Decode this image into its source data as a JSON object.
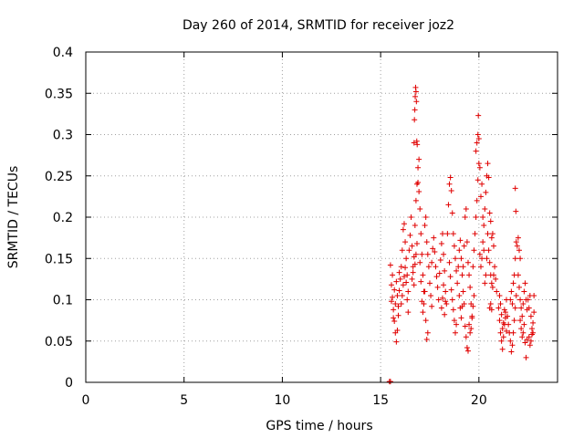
{
  "chart_data": {
    "type": "scatter",
    "title": "Day 260 of 2014, SRMTID for receiver joz2",
    "xlabel": "GPS time / hours",
    "ylabel": "SRMTID / TECUs",
    "xlim": [
      0,
      24
    ],
    "ylim": [
      0,
      0.4
    ],
    "x_ticks": [
      0,
      5,
      10,
      15,
      20
    ],
    "x_tick_labels": [
      "0",
      "5",
      "10",
      "15",
      "20"
    ],
    "y_ticks": [
      0,
      0.05,
      0.1,
      0.15,
      0.2,
      0.25,
      0.3,
      0.35,
      0.4
    ],
    "y_tick_labels": [
      "0",
      "0.05",
      "0.1",
      "0.15",
      "0.2",
      "0.25",
      "0.3",
      "0.35",
      "0.4"
    ],
    "grid": true,
    "legend": "none",
    "marker": "plus",
    "series": [
      {
        "color": "#e00000",
        "points": [
          [
            15.45,
            0.001
          ],
          [
            15.5,
            0.001
          ],
          [
            15.5,
            0.142
          ],
          [
            15.55,
            0.118
          ],
          [
            15.6,
            0.103
          ],
          [
            15.65,
            0.088
          ],
          [
            15.7,
            0.074
          ],
          [
            15.75,
            0.06
          ],
          [
            15.8,
            0.049
          ],
          [
            15.85,
            0.063
          ],
          [
            15.9,
            0.092
          ],
          [
            15.95,
            0.111
          ],
          [
            15.55,
            0.098
          ],
          [
            15.6,
            0.13
          ],
          [
            15.65,
            0.078
          ],
          [
            15.7,
            0.112
          ],
          [
            15.75,
            0.095
          ],
          [
            15.8,
            0.122
          ],
          [
            15.85,
            0.105
          ],
          [
            15.9,
            0.081
          ],
          [
            15.95,
            0.133
          ],
          [
            16.0,
            0.125
          ],
          [
            16.05,
            0.14
          ],
          [
            16.1,
            0.16
          ],
          [
            16.15,
            0.185
          ],
          [
            16.2,
            0.192
          ],
          [
            16.25,
            0.17
          ],
          [
            16.3,
            0.15
          ],
          [
            16.35,
            0.13
          ],
          [
            16.4,
            0.11
          ],
          [
            16.05,
            0.095
          ],
          [
            16.1,
            0.105
          ],
          [
            16.15,
            0.118
          ],
          [
            16.2,
            0.128
          ],
          [
            16.25,
            0.139
          ],
          [
            16.3,
            0.121
          ],
          [
            16.35,
            0.1
          ],
          [
            16.4,
            0.085
          ],
          [
            16.45,
            0.16
          ],
          [
            16.5,
            0.178
          ],
          [
            16.55,
            0.2
          ],
          [
            16.6,
            0.165
          ],
          [
            16.65,
            0.14
          ],
          [
            16.7,
            0.152
          ],
          [
            16.75,
            0.19
          ],
          [
            16.8,
            0.22
          ],
          [
            16.85,
            0.24
          ],
          [
            16.9,
            0.26
          ],
          [
            16.95,
            0.27
          ],
          [
            16.6,
            0.125
          ],
          [
            16.65,
            0.133
          ],
          [
            16.7,
            0.118
          ],
          [
            16.75,
            0.143
          ],
          [
            16.8,
            0.155
          ],
          [
            16.85,
            0.168
          ],
          [
            16.7,
            0.29
          ],
          [
            16.72,
            0.318
          ],
          [
            16.74,
            0.33
          ],
          [
            16.76,
            0.346
          ],
          [
            16.78,
            0.357
          ],
          [
            16.8,
            0.352
          ],
          [
            16.82,
            0.34
          ],
          [
            16.84,
            0.292
          ],
          [
            16.86,
            0.288
          ],
          [
            16.9,
            0.242
          ],
          [
            16.95,
            0.231
          ],
          [
            17.0,
            0.21
          ],
          [
            17.05,
            0.18
          ],
          [
            17.1,
            0.155
          ],
          [
            17.15,
            0.13
          ],
          [
            17.2,
            0.11
          ],
          [
            17.0,
            0.145
          ],
          [
            17.05,
            0.122
          ],
          [
            17.1,
            0.098
          ],
          [
            17.15,
            0.085
          ],
          [
            17.2,
            0.095
          ],
          [
            17.25,
            0.11
          ],
          [
            17.3,
            0.075
          ],
          [
            17.35,
            0.052
          ],
          [
            17.4,
            0.06
          ],
          [
            17.25,
            0.19
          ],
          [
            17.3,
            0.2
          ],
          [
            17.35,
            0.17
          ],
          [
            17.4,
            0.155
          ],
          [
            17.45,
            0.14
          ],
          [
            17.5,
            0.12
          ],
          [
            17.55,
            0.105
          ],
          [
            17.6,
            0.092
          ],
          [
            17.6,
            0.145
          ],
          [
            17.65,
            0.162
          ],
          [
            17.7,
            0.175
          ],
          [
            17.75,
            0.158
          ],
          [
            17.8,
            0.14
          ],
          [
            17.85,
            0.128
          ],
          [
            17.9,
            0.115
          ],
          [
            17.95,
            0.1
          ],
          [
            18.0,
            0.132
          ],
          [
            18.05,
            0.148
          ],
          [
            18.1,
            0.168
          ],
          [
            18.15,
            0.18
          ],
          [
            18.2,
            0.155
          ],
          [
            18.25,
            0.135
          ],
          [
            18.3,
            0.11
          ],
          [
            18.35,
            0.095
          ],
          [
            18.1,
            0.09
          ],
          [
            18.15,
            0.102
          ],
          [
            18.2,
            0.118
          ],
          [
            18.25,
            0.082
          ],
          [
            18.3,
            0.098
          ],
          [
            18.4,
            0.18
          ],
          [
            18.45,
            0.215
          ],
          [
            18.5,
            0.24
          ],
          [
            18.55,
            0.248
          ],
          [
            18.6,
            0.232
          ],
          [
            18.65,
            0.205
          ],
          [
            18.7,
            0.18
          ],
          [
            18.75,
            0.165
          ],
          [
            18.5,
            0.145
          ],
          [
            18.55,
            0.128
          ],
          [
            18.6,
            0.112
          ],
          [
            18.65,
            0.1
          ],
          [
            18.7,
            0.088
          ],
          [
            18.75,
            0.075
          ],
          [
            18.8,
            0.06
          ],
          [
            18.85,
            0.07
          ],
          [
            18.8,
            0.15
          ],
          [
            18.85,
            0.135
          ],
          [
            18.9,
            0.12
          ],
          [
            18.95,
            0.14
          ],
          [
            19.0,
            0.16
          ],
          [
            19.05,
            0.172
          ],
          [
            19.1,
            0.15
          ],
          [
            19.15,
            0.13
          ],
          [
            19.0,
            0.105
          ],
          [
            19.05,
            0.09
          ],
          [
            19.1,
            0.078
          ],
          [
            19.15,
            0.092
          ],
          [
            19.2,
            0.11
          ],
          [
            19.25,
            0.095
          ],
          [
            19.3,
            0.068
          ],
          [
            19.35,
            0.055
          ],
          [
            19.4,
            0.042
          ],
          [
            19.45,
            0.038
          ],
          [
            19.2,
            0.14
          ],
          [
            19.25,
            0.165
          ],
          [
            19.3,
            0.2
          ],
          [
            19.35,
            0.21
          ],
          [
            19.4,
            0.17
          ],
          [
            19.45,
            0.145
          ],
          [
            19.5,
            0.13
          ],
          [
            19.55,
            0.115
          ],
          [
            19.6,
            0.095
          ],
          [
            19.65,
            0.08
          ],
          [
            19.5,
            0.07
          ],
          [
            19.55,
            0.06
          ],
          [
            19.6,
            0.065
          ],
          [
            19.65,
            0.078
          ],
          [
            19.7,
            0.092
          ],
          [
            19.75,
            0.105
          ],
          [
            19.7,
            0.14
          ],
          [
            19.75,
            0.16
          ],
          [
            19.8,
            0.18
          ],
          [
            19.85,
            0.2
          ],
          [
            19.9,
            0.22
          ],
          [
            19.95,
            0.245
          ],
          [
            20.0,
            0.265
          ],
          [
            20.05,
            0.26
          ],
          [
            19.85,
            0.28
          ],
          [
            19.9,
            0.29
          ],
          [
            19.95,
            0.3
          ],
          [
            20.0,
            0.295
          ],
          [
            19.97,
            0.323
          ],
          [
            20.05,
            0.155
          ],
          [
            20.1,
            0.14
          ],
          [
            20.15,
            0.15
          ],
          [
            20.2,
            0.17
          ],
          [
            20.25,
            0.19
          ],
          [
            20.3,
            0.21
          ],
          [
            20.35,
            0.23
          ],
          [
            20.4,
            0.25
          ],
          [
            20.45,
            0.265
          ],
          [
            20.5,
            0.248
          ],
          [
            20.1,
            0.225
          ],
          [
            20.15,
            0.24
          ],
          [
            20.2,
            0.2
          ],
          [
            20.25,
            0.16
          ],
          [
            20.3,
            0.12
          ],
          [
            20.35,
            0.13
          ],
          [
            20.4,
            0.15
          ],
          [
            20.45,
            0.18
          ],
          [
            20.5,
            0.16
          ],
          [
            20.55,
            0.145
          ],
          [
            20.6,
            0.13
          ],
          [
            20.65,
            0.12
          ],
          [
            20.7,
            0.115
          ],
          [
            20.75,
            0.13
          ],
          [
            20.8,
            0.14
          ],
          [
            20.85,
            0.125
          ],
          [
            20.9,
            0.11
          ],
          [
            20.55,
            0.205
          ],
          [
            20.6,
            0.195
          ],
          [
            20.65,
            0.175
          ],
          [
            20.7,
            0.18
          ],
          [
            20.75,
            0.165
          ],
          [
            20.55,
            0.09
          ],
          [
            20.6,
            0.095
          ],
          [
            20.65,
            0.088
          ],
          [
            21.0,
            0.09
          ],
          [
            21.05,
            0.075
          ],
          [
            21.1,
            0.06
          ],
          [
            21.15,
            0.05
          ],
          [
            21.2,
            0.04
          ],
          [
            21.25,
            0.055
          ],
          [
            21.3,
            0.07
          ],
          [
            21.35,
            0.085
          ],
          [
            21.4,
            0.1
          ],
          [
            21.05,
            0.105
          ],
          [
            21.1,
            0.095
          ],
          [
            21.15,
            0.082
          ],
          [
            21.2,
            0.065
          ],
          [
            21.25,
            0.072
          ],
          [
            21.3,
            0.088
          ],
          [
            21.35,
            0.078
          ],
          [
            21.4,
            0.062
          ],
          [
            21.45,
            0.08
          ],
          [
            21.5,
            0.07
          ],
          [
            21.55,
            0.06
          ],
          [
            21.6,
            0.05
          ],
          [
            21.65,
            0.037
          ],
          [
            21.7,
            0.045
          ],
          [
            21.75,
            0.06
          ],
          [
            21.8,
            0.075
          ],
          [
            21.85,
            0.09
          ],
          [
            21.9,
            0.105
          ],
          [
            21.6,
            0.1
          ],
          [
            21.65,
            0.11
          ],
          [
            21.7,
            0.095
          ],
          [
            21.75,
            0.12
          ],
          [
            21.8,
            0.13
          ],
          [
            21.85,
            0.15
          ],
          [
            21.9,
            0.17
          ],
          [
            21.95,
            0.165
          ],
          [
            22.0,
            0.175
          ],
          [
            22.05,
            0.16
          ],
          [
            22.1,
            0.15
          ],
          [
            21.85,
            0.235
          ],
          [
            21.88,
            0.207
          ],
          [
            22.0,
            0.13
          ],
          [
            22.05,
            0.115
          ],
          [
            22.1,
            0.1
          ],
          [
            22.15,
            0.09
          ],
          [
            22.2,
            0.08
          ],
          [
            22.25,
            0.095
          ],
          [
            22.3,
            0.11
          ],
          [
            22.35,
            0.12
          ],
          [
            22.4,
            0.1
          ],
          [
            22.45,
            0.088
          ],
          [
            22.1,
            0.075
          ],
          [
            22.15,
            0.065
          ],
          [
            22.2,
            0.055
          ],
          [
            22.25,
            0.06
          ],
          [
            22.3,
            0.07
          ],
          [
            22.35,
            0.048
          ],
          [
            22.4,
            0.03
          ],
          [
            22.45,
            0.052
          ],
          [
            22.5,
            0.1
          ],
          [
            22.55,
            0.09
          ],
          [
            22.6,
            0.105
          ],
          [
            22.65,
            0.08
          ],
          [
            22.7,
            0.065
          ],
          [
            22.75,
            0.06
          ],
          [
            22.8,
            0.105
          ],
          [
            22.55,
            0.055
          ],
          [
            22.6,
            0.045
          ],
          [
            22.65,
            0.05
          ],
          [
            22.7,
            0.058
          ],
          [
            22.75,
            0.072
          ],
          [
            22.8,
            0.085
          ]
        ]
      }
    ]
  }
}
